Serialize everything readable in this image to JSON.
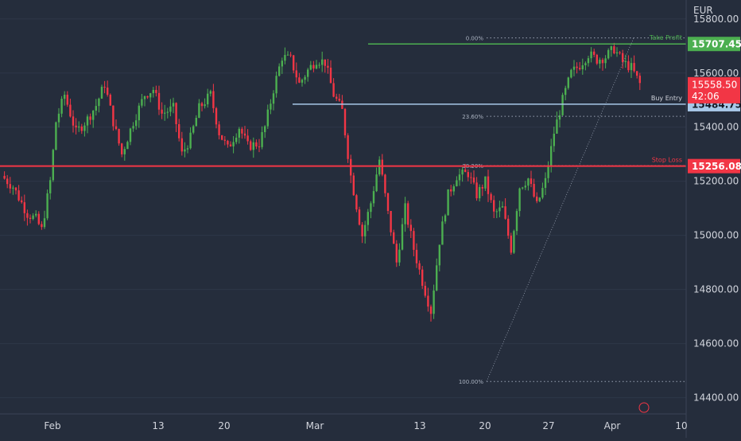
{
  "chart_data": {
    "type": "candlestick",
    "symbol_currency": "EUR",
    "ylim": [
      14340,
      15870
    ],
    "y_ticks": [
      {
        "value": 15800,
        "label": "15800.00"
      },
      {
        "value": 15600,
        "label": "15600.00"
      },
      {
        "value": 15400,
        "label": "15400.00"
      },
      {
        "value": 15200,
        "label": "15200.00"
      },
      {
        "value": 15000,
        "label": "15000.00"
      },
      {
        "value": 14800,
        "label": "14800.00"
      },
      {
        "value": 14600,
        "label": "14600.00"
      },
      {
        "value": 14400,
        "label": "14400.00"
      }
    ],
    "x_ticks": [
      "Feb",
      "13",
      "20",
      "Mar",
      "13",
      "20",
      "27",
      "Apr",
      "10"
    ],
    "price_path": [
      [
        0,
        15220
      ],
      [
        4,
        15180
      ],
      [
        9,
        15080
      ],
      [
        12,
        15060
      ],
      [
        14,
        15020
      ],
      [
        17,
        15200
      ],
      [
        19,
        15420
      ],
      [
        22,
        15520
      ],
      [
        26,
        15380
      ],
      [
        30,
        15430
      ],
      [
        33,
        15480
      ],
      [
        36,
        15560
      ],
      [
        39,
        15420
      ],
      [
        42,
        15300
      ],
      [
        46,
        15420
      ],
      [
        50,
        15520
      ],
      [
        53,
        15540
      ],
      [
        56,
        15450
      ],
      [
        60,
        15470
      ],
      [
        63,
        15300
      ],
      [
        66,
        15360
      ],
      [
        69,
        15470
      ],
      [
        73,
        15520
      ],
      [
        76,
        15380
      ],
      [
        79,
        15320
      ],
      [
        83,
        15400
      ],
      [
        86,
        15330
      ],
      [
        90,
        15340
      ],
      [
        92,
        15400
      ],
      [
        95,
        15540
      ],
      [
        98,
        15660
      ],
      [
        101,
        15650
      ],
      [
        104,
        15560
      ],
      [
        107,
        15610
      ],
      [
        110,
        15650
      ],
      [
        113,
        15640
      ],
      [
        116,
        15520
      ],
      [
        119,
        15460
      ],
      [
        122,
        15220
      ],
      [
        126,
        15000
      ],
      [
        129,
        15120
      ],
      [
        132,
        15280
      ],
      [
        135,
        15080
      ],
      [
        138,
        14900
      ],
      [
        141,
        15100
      ],
      [
        144,
        14950
      ],
      [
        147,
        14830
      ],
      [
        150,
        14720
      ],
      [
        153,
        14980
      ],
      [
        156,
        15150
      ],
      [
        159,
        15220
      ],
      [
        163,
        15230
      ],
      [
        166,
        15150
      ],
      [
        169,
        15200
      ],
      [
        172,
        15080
      ],
      [
        175,
        15100
      ],
      [
        178,
        14950
      ],
      [
        181,
        15180
      ],
      [
        184,
        15210
      ],
      [
        187,
        15110
      ],
      [
        190,
        15200
      ],
      [
        193,
        15380
      ],
      [
        196,
        15500
      ],
      [
        199,
        15600
      ],
      [
        202,
        15630
      ],
      [
        205,
        15670
      ],
      [
        208,
        15650
      ],
      [
        211,
        15660
      ],
      [
        214,
        15690
      ],
      [
        217,
        15640
      ],
      [
        220,
        15620
      ],
      [
        223,
        15560
      ]
    ],
    "levels": [
      {
        "name": "Take Profit",
        "value": 15707.45,
        "label": "15707.45",
        "color": "#4caf50"
      },
      {
        "name": "Buy Entry",
        "value": 15484.75,
        "label": "15484.75",
        "color": "#a8c8e8"
      },
      {
        "name": "Stop Loss",
        "value": 15256.08,
        "label": "15256.08",
        "color": "#f23645"
      }
    ],
    "fib_levels": [
      {
        "label": "0.00%",
        "value": 15730
      },
      {
        "label": "23.60%",
        "value": 15440
      },
      {
        "label": "38.20%",
        "value": 15258
      },
      {
        "label": "100.00%",
        "value": 14460
      }
    ],
    "last_price": {
      "value": 15558.5,
      "label": "15558.50",
      "countdown": "42:06",
      "color": "#f23645"
    },
    "annotations": {
      "take_profit": "Take Profit",
      "buy_entry": "Buy Entry",
      "stop_loss": "Stop Loss"
    },
    "colors": {
      "background": "#252d3c",
      "up": "#4caf50",
      "down": "#f23645",
      "axis_text": "#d1d4dc",
      "grid": "#2e3748"
    }
  }
}
